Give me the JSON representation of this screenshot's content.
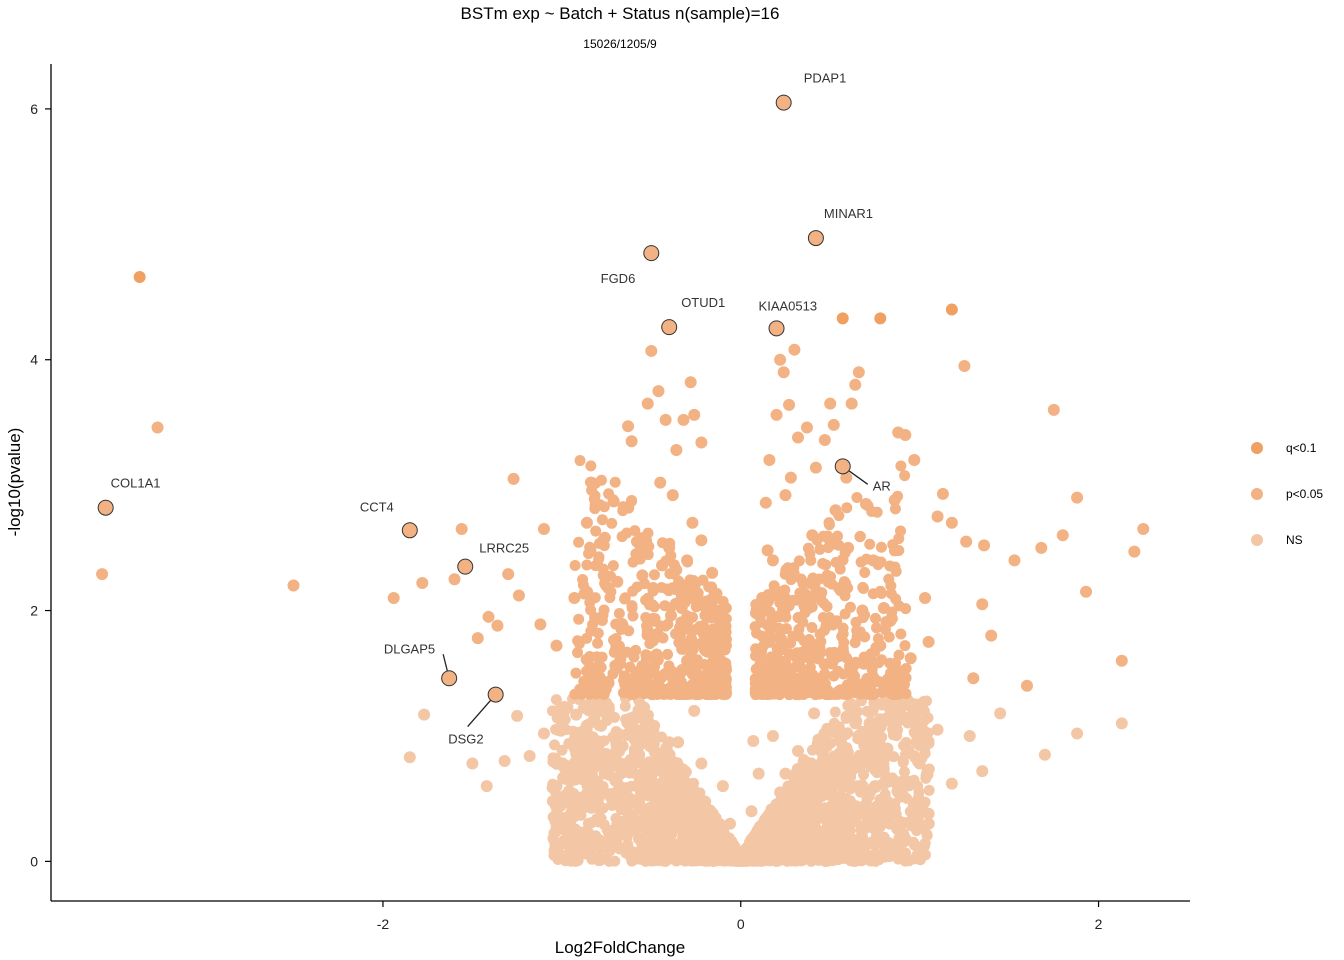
{
  "chart_data": {
    "type": "scatter",
    "title": "BSTm exp ~ Batch + Status n(sample)=16",
    "subtitle": "15026/1205/9",
    "xlabel": "Log2FoldChange",
    "ylabel": "-log10(pvalue)",
    "xlim": [
      -3.85,
      2.5
    ],
    "ylim": [
      -0.3,
      6.35
    ],
    "x_ticks": [
      -2,
      0,
      2
    ],
    "y_ticks": [
      0,
      2,
      4,
      6
    ],
    "grid": false,
    "legend_position": "right",
    "colors": {
      "q<0.1": "#F0A060",
      "p<0.05": "#F2B283",
      "NS": "#F3C7A6"
    },
    "legend": [
      {
        "name": "q<0.1",
        "color": "#F0A060"
      },
      {
        "name": "p<0.05",
        "color": "#F2B283"
      },
      {
        "name": "NS",
        "color": "#F3C7A6"
      }
    ],
    "series": [
      {
        "name": "q<0.1",
        "points": [
          [
            -3.36,
            4.66
          ],
          [
            0.57,
            4.33
          ],
          [
            0.78,
            4.33
          ],
          [
            1.18,
            4.4
          ]
        ]
      },
      {
        "name": "p<0.05",
        "points": [
          [
            -3.26,
            3.46
          ],
          [
            -3.57,
            2.29
          ],
          [
            -2.5,
            2.2
          ],
          [
            -1.94,
            2.1
          ],
          [
            -1.78,
            2.22
          ],
          [
            -1.6,
            2.25
          ],
          [
            -1.56,
            2.65
          ],
          [
            -1.47,
            1.78
          ],
          [
            -1.41,
            1.95
          ],
          [
            -1.36,
            1.88
          ],
          [
            -1.3,
            2.29
          ],
          [
            -1.27,
            3.05
          ],
          [
            -1.24,
            2.12
          ],
          [
            -1.12,
            1.89
          ],
          [
            -1.1,
            2.65
          ],
          [
            -1.03,
            1.72
          ],
          [
            -0.93,
            2.1
          ],
          [
            -0.86,
            2.7
          ],
          [
            -0.84,
            2.48
          ],
          [
            -0.8,
            1.55
          ],
          [
            -0.76,
            2.58
          ],
          [
            -0.74,
            2.18
          ],
          [
            -0.71,
            2.87
          ],
          [
            -0.66,
            1.88
          ],
          [
            -0.63,
            3.47
          ],
          [
            -0.61,
            3.35
          ],
          [
            -0.58,
            2.55
          ],
          [
            -0.55,
            2.28
          ],
          [
            -0.52,
            3.65
          ],
          [
            -0.49,
            2.18
          ],
          [
            -0.47,
            1.65
          ],
          [
            -0.46,
            3.75
          ],
          [
            -0.45,
            3.02
          ],
          [
            -0.42,
            3.52
          ],
          [
            -0.4,
            2.5
          ],
          [
            -0.38,
            2.92
          ],
          [
            -0.36,
            3.28
          ],
          [
            -0.34,
            1.8
          ],
          [
            -0.32,
            3.52
          ],
          [
            -0.3,
            2.4
          ],
          [
            -0.28,
            3.82
          ],
          [
            -0.26,
            3.56
          ],
          [
            -0.24,
            2.1
          ],
          [
            -0.22,
            3.34
          ],
          [
            -0.2,
            1.7
          ],
          [
            -0.18,
            1.52
          ],
          [
            -0.16,
            2.3
          ],
          [
            -0.14,
            1.42
          ],
          [
            -0.5,
            4.07
          ],
          [
            -0.39,
            1.96
          ],
          [
            -0.58,
            1.36
          ],
          [
            -0.69,
            2.23
          ],
          [
            -0.52,
            1.84
          ],
          [
            -0.27,
            2.7
          ],
          [
            -0.33,
            2.02
          ],
          [
            -0.44,
            2.36
          ],
          [
            -0.22,
            2.56
          ],
          [
            -0.18,
            1.98
          ],
          [
            -0.3,
            1.6
          ],
          [
            0.1,
            1.4
          ],
          [
            0.12,
            2.1
          ],
          [
            0.14,
            2.86
          ],
          [
            0.16,
            3.2
          ],
          [
            0.18,
            2.4
          ],
          [
            0.2,
            3.56
          ],
          [
            0.22,
            4.0
          ],
          [
            0.24,
            3.9
          ],
          [
            0.27,
            3.64
          ],
          [
            0.28,
            3.06
          ],
          [
            0.3,
            4.08
          ],
          [
            0.32,
            3.38
          ],
          [
            0.35,
            2.22
          ],
          [
            0.37,
            3.46
          ],
          [
            0.38,
            2.02
          ],
          [
            0.42,
            3.14
          ],
          [
            0.44,
            1.7
          ],
          [
            0.47,
            3.36
          ],
          [
            0.5,
            3.65
          ],
          [
            0.52,
            3.48
          ],
          [
            0.55,
            2.18
          ],
          [
            0.59,
            3.06
          ],
          [
            0.62,
            3.65
          ],
          [
            0.64,
            3.8
          ],
          [
            0.66,
            3.9
          ],
          [
            0.7,
            2.85
          ],
          [
            0.74,
            2.4
          ],
          [
            0.78,
            1.72
          ],
          [
            0.86,
            2.88
          ],
          [
            0.88,
            3.42
          ],
          [
            0.92,
            3.4
          ],
          [
            0.97,
            3.2
          ],
          [
            1.03,
            2.1
          ],
          [
            1.05,
            1.75
          ],
          [
            1.1,
            2.75
          ],
          [
            1.13,
            2.93
          ],
          [
            1.25,
            3.95
          ],
          [
            1.26,
            2.55
          ],
          [
            1.36,
            2.52
          ],
          [
            1.4,
            1.8
          ],
          [
            1.53,
            2.4
          ],
          [
            1.68,
            2.5
          ],
          [
            1.75,
            3.6
          ],
          [
            1.8,
            2.6
          ],
          [
            1.88,
            2.9
          ],
          [
            1.93,
            2.15
          ],
          [
            2.13,
            1.6
          ],
          [
            2.2,
            2.47
          ],
          [
            2.25,
            2.65
          ],
          [
            0.33,
            1.55
          ],
          [
            0.4,
            2.6
          ],
          [
            0.48,
            1.88
          ],
          [
            0.6,
            2.5
          ],
          [
            0.68,
            2.0
          ],
          [
            0.8,
            2.02
          ],
          [
            0.95,
            1.62
          ],
          [
            1.18,
            2.7
          ],
          [
            1.3,
            1.46
          ],
          [
            1.35,
            2.05
          ],
          [
            1.6,
            1.4
          ],
          [
            0.25,
            2.92
          ],
          [
            0.15,
            2.48
          ],
          [
            0.53,
            2.8
          ],
          [
            0.84,
            1.5
          ],
          [
            0.22,
            1.96
          ]
        ]
      },
      {
        "name": "NS",
        "points": [
          [
            -1.85,
            0.83
          ],
          [
            -1.77,
            1.17
          ],
          [
            -1.5,
            0.78
          ],
          [
            -1.42,
            0.6
          ],
          [
            -1.32,
            0.8
          ],
          [
            -1.25,
            1.16
          ],
          [
            -1.18,
            0.84
          ],
          [
            -1.1,
            1.02
          ],
          [
            -1.03,
            0.6
          ],
          [
            -0.96,
            0.56
          ],
          [
            -0.92,
            1.17
          ],
          [
            -0.86,
            0.5
          ],
          [
            -0.83,
            0.72
          ],
          [
            -0.78,
            1.08
          ],
          [
            -0.72,
            0.45
          ],
          [
            -0.66,
            0.92
          ],
          [
            -0.6,
            0.35
          ],
          [
            -0.55,
            1.05
          ],
          [
            -0.5,
            0.68
          ],
          [
            -0.44,
            0.28
          ],
          [
            -0.4,
            0.95
          ],
          [
            -0.35,
            0.52
          ],
          [
            -0.3,
            0.18
          ],
          [
            -0.26,
            1.2
          ],
          [
            -0.22,
            0.78
          ],
          [
            -0.18,
            0.4
          ],
          [
            -0.14,
            0.1
          ],
          [
            -0.1,
            0.6
          ],
          [
            -0.06,
            0.3
          ],
          [
            -0.03,
            0.05
          ],
          [
            0.03,
            0.08
          ],
          [
            0.06,
            0.4
          ],
          [
            0.1,
            0.7
          ],
          [
            0.14,
            0.22
          ],
          [
            0.18,
            1.0
          ],
          [
            0.22,
            0.55
          ],
          [
            0.27,
            0.16
          ],
          [
            0.32,
            0.88
          ],
          [
            0.36,
            0.35
          ],
          [
            0.41,
            1.18
          ],
          [
            0.46,
            0.62
          ],
          [
            0.52,
            0.25
          ],
          [
            0.56,
            0.95
          ],
          [
            0.61,
            0.48
          ],
          [
            0.66,
            0.75
          ],
          [
            0.72,
            1.1
          ],
          [
            0.78,
            0.33
          ],
          [
            0.82,
            0.9
          ],
          [
            0.88,
            0.55
          ],
          [
            0.94,
            1.15
          ],
          [
            1.0,
            0.78
          ],
          [
            1.05,
            0.38
          ],
          [
            1.1,
            1.05
          ],
          [
            1.18,
            0.62
          ],
          [
            1.28,
            1.0
          ],
          [
            1.35,
            0.72
          ],
          [
            1.45,
            1.18
          ],
          [
            1.7,
            0.85
          ],
          [
            1.88,
            1.02
          ],
          [
            2.13,
            1.1
          ],
          [
            1.05,
            0.3
          ],
          [
            0.92,
            0.18
          ],
          [
            -0.76,
            0.7
          ],
          [
            -0.92,
            0.86
          ],
          [
            -1.05,
            0.48
          ],
          [
            -0.58,
            0.8
          ],
          [
            -0.35,
            0.95
          ],
          [
            -0.2,
            0.22
          ],
          [
            0.07,
            0.96
          ],
          [
            0.25,
            0.7
          ],
          [
            0.45,
            0.4
          ],
          [
            0.62,
            0.15
          ],
          [
            0.75,
            0.6
          ],
          [
            -0.65,
            0.55
          ],
          [
            -0.48,
            0.15
          ]
        ]
      }
    ],
    "highlighted": [
      {
        "label": "PDAP1",
        "x": 0.24,
        "y": 6.05
      },
      {
        "label": "MINAR1",
        "x": 0.42,
        "y": 4.97
      },
      {
        "label": "FGD6",
        "x": -0.5,
        "y": 4.85
      },
      {
        "label": "OTUD1",
        "x": -0.4,
        "y": 4.26
      },
      {
        "label": "KIAA0513",
        "x": 0.2,
        "y": 4.25
      },
      {
        "label": "AR",
        "x": 0.57,
        "y": 3.15
      },
      {
        "label": "COL1A1",
        "x": -3.55,
        "y": 2.82
      },
      {
        "label": "CCT4",
        "x": -1.85,
        "y": 2.64
      },
      {
        "label": "LRRC25",
        "x": -1.54,
        "y": 2.35
      },
      {
        "label": "DLGAP5",
        "x": -1.63,
        "y": 1.46
      },
      {
        "label": "DSG2",
        "x": -1.37,
        "y": 1.33
      }
    ]
  }
}
